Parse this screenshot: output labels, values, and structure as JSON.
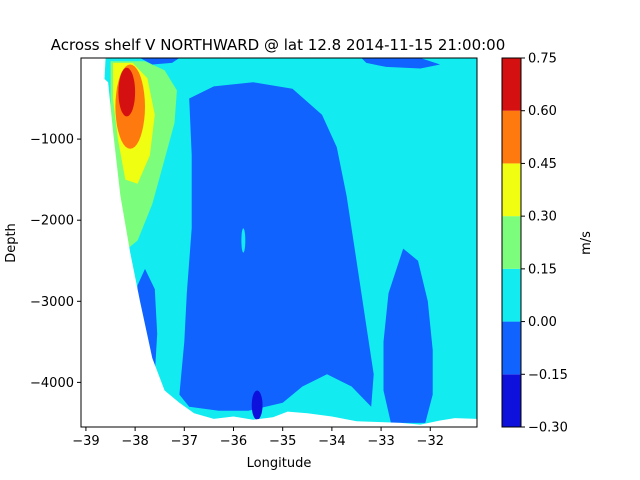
{
  "chart_data": {
    "type": "heatmap",
    "subtype": "filled-contour",
    "title": "Across shelf V NORTHWARD @ lat 12.8 2014-11-15 21:00:00",
    "xlabel": "Longitude",
    "ylabel": "Depth",
    "colorbar_label": "m/s",
    "xlim": [
      -39.1,
      -31.05
    ],
    "ylim": [
      -4550,
      0
    ],
    "xticks": [
      -39,
      -38,
      -37,
      -36,
      -35,
      -34,
      -33,
      -32
    ],
    "xtick_labels": [
      "−39",
      "−38",
      "−37",
      "−36",
      "−35",
      "−34",
      "−33",
      "−32"
    ],
    "yticks": [
      -4000,
      -3000,
      -2000,
      -1000
    ],
    "ytick_labels": [
      "−4000",
      "−3000",
      "−2000",
      "−1000"
    ],
    "levels": [
      -0.3,
      -0.15,
      0.0,
      0.15,
      0.3,
      0.45,
      0.6,
      0.75
    ],
    "level_labels": [
      "−0.30",
      "−0.15",
      "0.00",
      "0.15",
      "0.30",
      "0.45",
      "0.60",
      "0.75"
    ],
    "level_colors": [
      "#0e10dc",
      "#1163ff",
      "#12ecf0",
      "#7cfd7c",
      "#f0fe11",
      "#ff7a0e",
      "#d51010"
    ],
    "bathymetry": [
      [
        -39.1,
        0
      ],
      [
        -38.55,
        -300
      ],
      [
        -38.45,
        -900
      ],
      [
        -38.3,
        -1700
      ],
      [
        -38.1,
        -2400
      ],
      [
        -37.9,
        -3000
      ],
      [
        -37.65,
        -3700
      ],
      [
        -37.4,
        -4100
      ],
      [
        -37.1,
        -4250
      ],
      [
        -36.8,
        -4380
      ],
      [
        -36.4,
        -4450
      ],
      [
        -36.0,
        -4420
      ],
      [
        -35.6,
        -4460
      ],
      [
        -35.2,
        -4430
      ],
      [
        -34.9,
        -4360
      ],
      [
        -34.5,
        -4380
      ],
      [
        -34.0,
        -4420
      ],
      [
        -33.5,
        -4480
      ],
      [
        -33.0,
        -4490
      ],
      [
        -32.6,
        -4500
      ],
      [
        -32.2,
        -4520
      ],
      [
        -31.8,
        -4470
      ],
      [
        -31.5,
        -4440
      ],
      [
        -31.05,
        -4450
      ]
    ],
    "contour_regions": [
      {
        "level": 0.0,
        "band": "0.00 to 0.15",
        "lon_range": [
          -38.55,
          -31.05
        ],
        "depth_range": [
          -4550,
          0
        ]
      },
      {
        "level": -0.15,
        "band": "-0.15 to 0.00",
        "lon_range": [
          -36.9,
          -33.2
        ],
        "depth_range": [
          -4450,
          -300
        ],
        "note": "broad mid-section southward flow"
      },
      {
        "level": -0.15,
        "band": "-0.15 to 0.00",
        "lon_range": [
          -33.0,
          -31.9
        ],
        "depth_range": [
          -4500,
          -2400
        ],
        "note": "deep eastern lobe"
      },
      {
        "level": -0.15,
        "band": "-0.15 to 0.00",
        "lon_range": [
          -38.0,
          -37.5
        ],
        "depth_range": [
          -4100,
          -2600
        ],
        "note": "slope lobe"
      },
      {
        "level": 0.15,
        "band": "0.15 to 0.30",
        "lon_range": [
          -38.5,
          -37.1
        ],
        "depth_range": [
          -2300,
          -50
        ]
      },
      {
        "level": 0.3,
        "band": "0.30 to 0.45",
        "lon_range": [
          -38.45,
          -37.7
        ],
        "depth_range": [
          -1600,
          -100
        ]
      },
      {
        "level": 0.45,
        "band": "0.45 to 0.60",
        "lon_range": [
          -38.4,
          -37.8
        ],
        "depth_range": [
          -1100,
          -100
        ]
      },
      {
        "level": 0.6,
        "band": "0.60 to 0.75",
        "lon_range": [
          -38.35,
          -38.0
        ],
        "depth_range": [
          -700,
          -150
        ],
        "note": "jet core maximum"
      },
      {
        "level": -0.3,
        "band": "-0.30 to -0.15",
        "lon_range": [
          -35.65,
          -35.4
        ],
        "depth_range": [
          -4400,
          -4120
        ],
        "note": "small deep minimum"
      }
    ]
  }
}
